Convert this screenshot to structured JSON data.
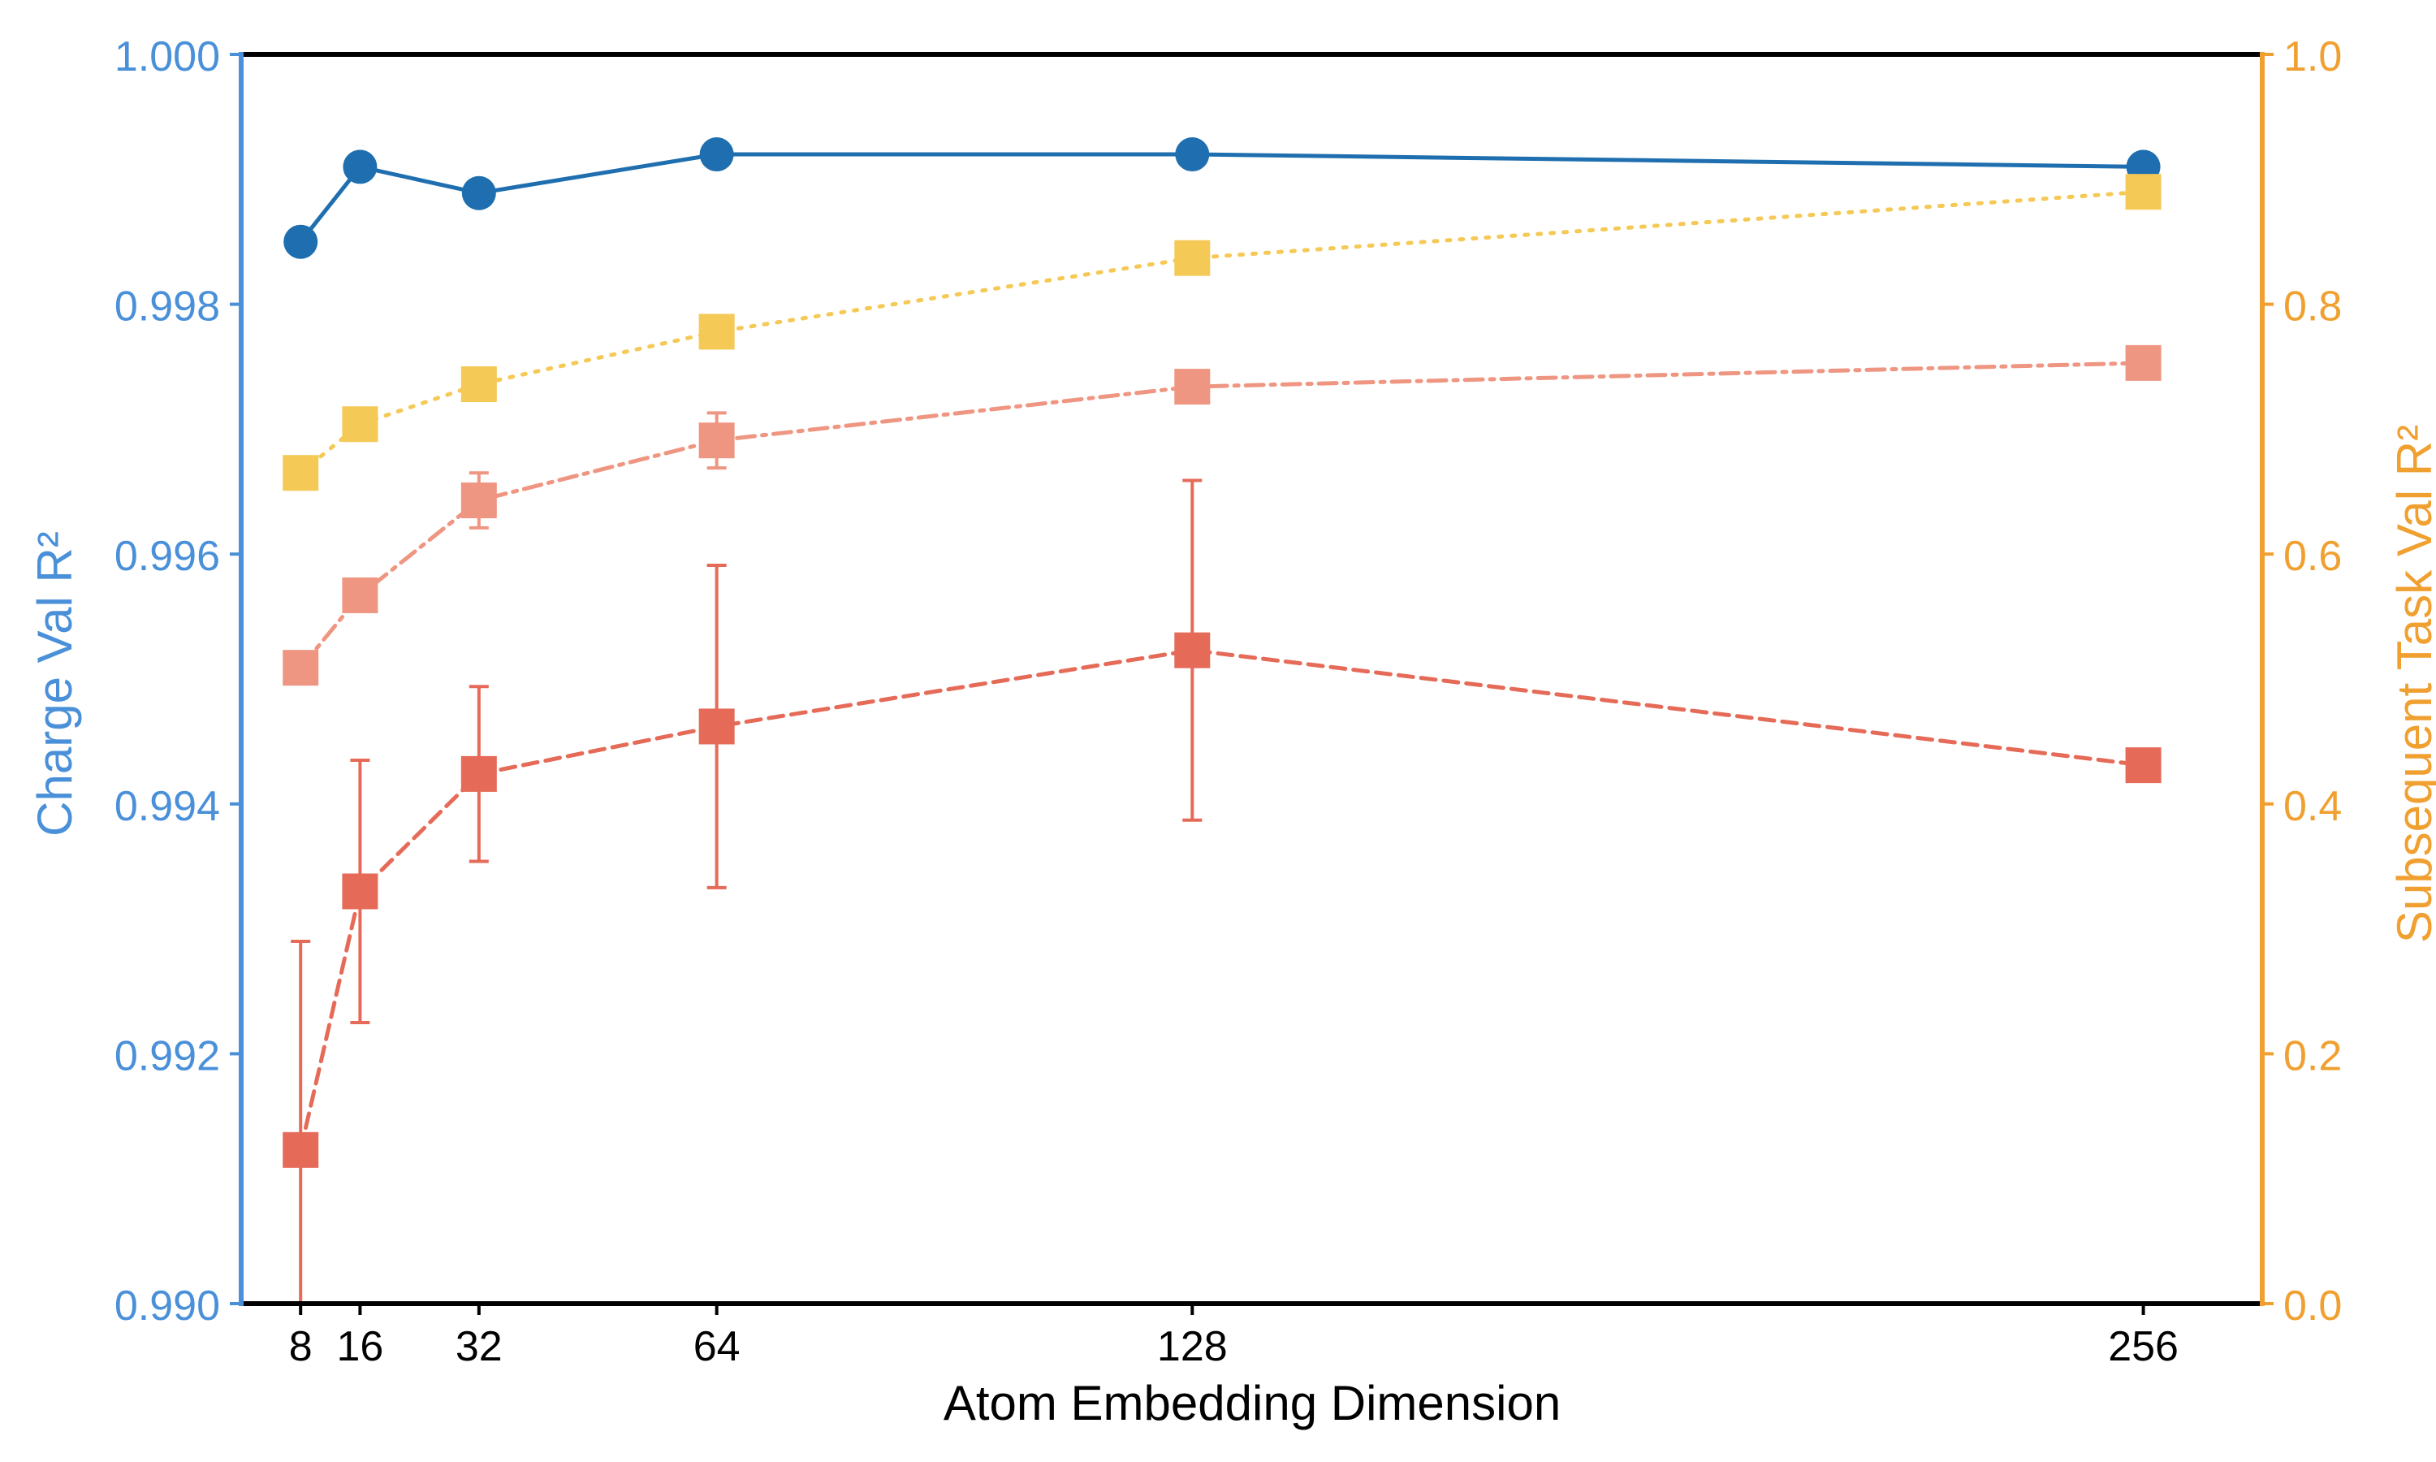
{
  "chart_data": {
    "type": "line",
    "title": "",
    "xlabel": "Atom Embedding Dimension",
    "ylabel_left": "Charge Val R²",
    "ylabel_right": "Subsequent Task Val R²",
    "x_ticks": [
      8,
      16,
      32,
      64,
      128,
      256
    ],
    "x_tick_labels": [
      "8",
      "16",
      "32",
      "64",
      "128",
      "256"
    ],
    "xlim": [
      0,
      272
    ],
    "ylim_left": [
      0.99,
      1.0
    ],
    "ylim_right": [
      0.0,
      1.0
    ],
    "y_left_ticks": [
      0.99,
      0.992,
      0.994,
      0.996,
      0.998,
      1.0
    ],
    "y_left_tick_labels": [
      "0.990",
      "0.992",
      "0.994",
      "0.996",
      "0.998",
      "1.000"
    ],
    "y_right_ticks": [
      0.0,
      0.2,
      0.4,
      0.6,
      0.8,
      1.0
    ],
    "y_right_tick_labels": [
      "0.0",
      "0.2",
      "0.4",
      "0.6",
      "0.8",
      "1.0"
    ],
    "grid": false,
    "legend": "none",
    "colors": {
      "left_axis": "#4a90d9",
      "right_axis": "#f0a030",
      "charge": "#1f6fb0",
      "task_yellow": "#f5c956",
      "task_salmon": "#ef9682",
      "task_red": "#e56b58"
    },
    "series": [
      {
        "axis": "left",
        "style": "solid",
        "marker": "circle",
        "color_key": "charge",
        "x": [
          8,
          16,
          32,
          64,
          128,
          256
        ],
        "values": [
          0.9985,
          0.9991,
          0.99889,
          0.9992,
          0.9992,
          0.9991
        ]
      },
      {
        "axis": "right",
        "style": "dotted",
        "marker": "square",
        "color_key": "task_yellow",
        "x": [
          8,
          16,
          32,
          64,
          128,
          256
        ],
        "values": [
          0.665,
          0.704,
          0.736,
          0.778,
          0.837,
          0.89
        ]
      },
      {
        "axis": "right",
        "style": "dashdot",
        "marker": "square",
        "color_key": "task_salmon",
        "x": [
          8,
          16,
          32,
          64,
          128,
          256
        ],
        "values": [
          0.509,
          0.567,
          0.643,
          0.691,
          0.734,
          0.753
        ],
        "err": [
          0,
          0,
          0.022,
          0.022,
          0,
          0
        ]
      },
      {
        "axis": "right",
        "style": "dashed",
        "marker": "square",
        "color_key": "task_red",
        "x": [
          8,
          16,
          32,
          64,
          128,
          256
        ],
        "values": [
          0.123,
          0.33,
          0.424,
          0.462,
          0.523,
          0.431
        ],
        "err": [
          0.167,
          0.105,
          0.07,
          0.129,
          0.136,
          0.012
        ]
      }
    ]
  }
}
